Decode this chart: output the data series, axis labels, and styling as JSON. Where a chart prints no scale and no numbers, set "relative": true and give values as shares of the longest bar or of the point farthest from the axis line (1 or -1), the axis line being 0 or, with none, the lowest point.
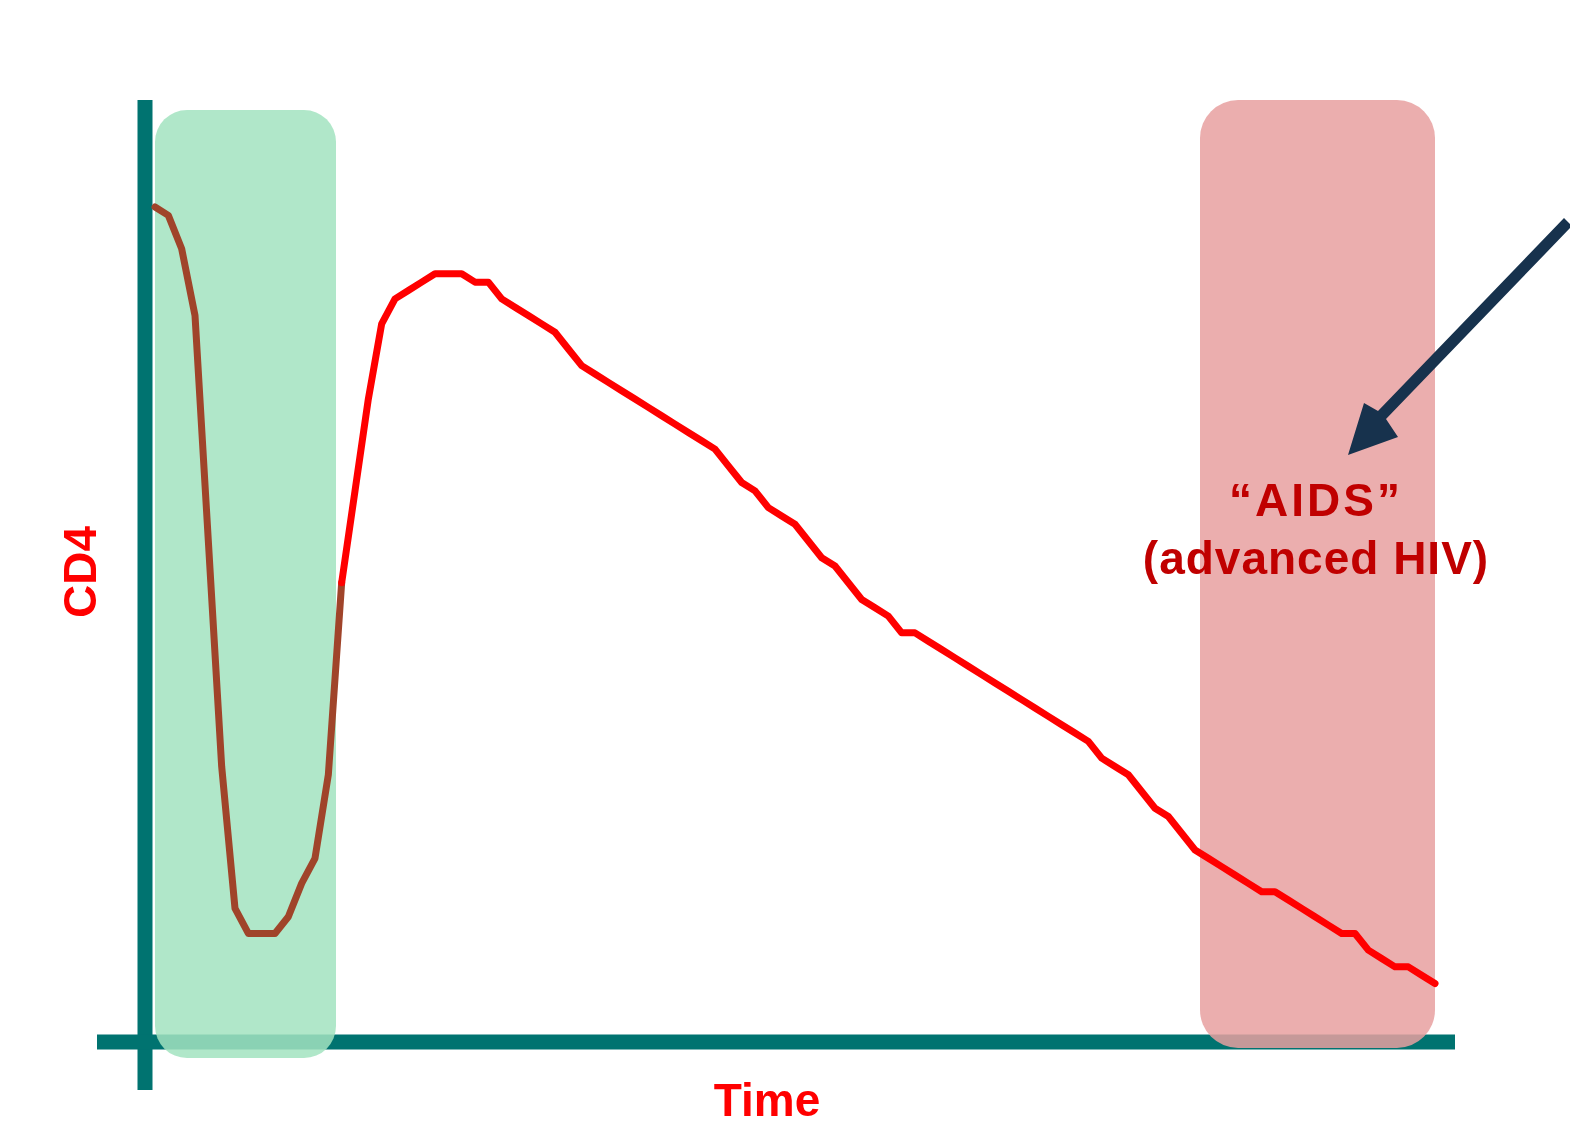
{
  "chart_data": {
    "type": "line",
    "relative": true,
    "xlabel": "Time",
    "ylabel": "CD4",
    "marker": "none",
    "line_style": "solid",
    "categories": [
      null,
      null,
      null,
      null,
      null,
      null,
      null,
      null,
      null,
      null,
      null,
      null,
      null,
      null,
      null,
      null,
      null,
      null,
      null,
      null,
      null,
      null,
      null,
      null,
      null,
      null,
      null,
      null,
      null,
      null,
      null,
      null,
      null,
      null,
      null,
      null,
      null,
      null,
      null,
      null,
      null,
      null,
      null,
      null,
      null,
      null,
      null,
      null,
      null,
      null,
      null,
      null,
      null,
      null,
      null,
      null,
      null,
      null,
      null,
      null,
      null,
      null,
      null,
      null,
      null,
      null,
      null,
      null,
      null,
      null,
      null,
      null,
      null,
      null,
      null,
      null,
      null,
      null,
      null,
      null,
      null,
      null,
      null,
      null,
      null,
      null,
      null,
      null,
      null,
      null,
      null,
      null,
      null,
      null,
      null,
      null,
      null
    ],
    "series": [
      {
        "color": "#a0442a",
        "values": [
          1.0,
          0.99,
          0.95,
          0.87,
          0.6,
          0.33,
          0.16,
          0.13,
          0.13,
          0.13,
          0.15,
          0.19,
          0.22,
          0.32,
          0.55,
          null,
          null,
          null,
          null,
          null,
          null,
          null,
          null,
          null,
          null,
          null,
          null,
          null,
          null,
          null,
          null,
          null,
          null,
          null,
          null,
          null,
          null,
          null,
          null,
          null,
          null,
          null,
          null,
          null,
          null,
          null,
          null,
          null,
          null,
          null,
          null,
          null,
          null,
          null,
          null,
          null,
          null,
          null,
          null,
          null,
          null,
          null,
          null,
          null,
          null,
          null,
          null,
          null,
          null,
          null,
          null,
          null,
          null,
          null,
          null,
          null,
          null,
          null,
          null,
          null,
          null,
          null,
          null,
          null,
          null,
          null,
          null,
          null,
          null,
          null,
          null,
          null,
          null,
          null,
          null,
          null,
          null
        ]
      },
      {
        "color": "#ff0000",
        "values": [
          null,
          null,
          null,
          null,
          null,
          null,
          null,
          null,
          null,
          null,
          null,
          null,
          null,
          null,
          0.55,
          0.66,
          0.77,
          0.86,
          0.89,
          0.9,
          0.91,
          0.92,
          0.92,
          0.92,
          0.91,
          0.91,
          0.89,
          0.88,
          0.87,
          0.86,
          0.85,
          0.83,
          0.81,
          0.8,
          0.79,
          0.78,
          0.77,
          0.76,
          0.75,
          0.74,
          0.73,
          0.72,
          0.71,
          0.69,
          0.67,
          0.66,
          0.64,
          0.63,
          0.62,
          0.6,
          0.58,
          0.57,
          0.55,
          0.53,
          0.52,
          0.51,
          0.49,
          0.49,
          0.48,
          0.47,
          0.46,
          0.45,
          0.44,
          0.43,
          0.42,
          0.41,
          0.4,
          0.39,
          0.38,
          0.37,
          0.36,
          0.34,
          0.33,
          0.32,
          0.3,
          0.28,
          0.27,
          0.25,
          0.23,
          0.22,
          0.21,
          0.2,
          0.19,
          0.18,
          0.18,
          0.17,
          0.16,
          0.15,
          0.14,
          0.13,
          0.13,
          0.11,
          0.1,
          0.09,
          0.09,
          0.08,
          0.07
        ]
      }
    ],
    "annotations": [
      "“AIDS”",
      "(advanced HIV)"
    ]
  }
}
